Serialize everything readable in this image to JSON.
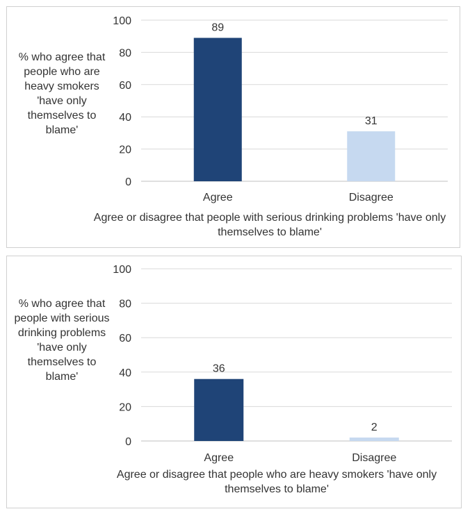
{
  "chart_data": [
    {
      "type": "bar",
      "categories": [
        "Agree",
        "Disagree"
      ],
      "values": [
        89,
        31
      ],
      "ylabel": "% who agree that people who are heavy smokers 'have only themselves to blame'",
      "xlabel": "Agree or disagree that people with serious drinking problems 'have only themselves to blame'",
      "ylim": [
        0,
        100
      ],
      "yticks": [
        0,
        20,
        40,
        60,
        80,
        100
      ],
      "grid": true,
      "colors": [
        "#1f4477",
        "#c6d9f0"
      ]
    },
    {
      "type": "bar",
      "categories": [
        "Agree",
        "Disagree"
      ],
      "values": [
        36,
        2
      ],
      "ylabel": "% who agree that people with serious drinking problems 'have only themselves to blame'",
      "xlabel": "Agree or disagree that people who are heavy smokers 'have only themselves to blame'",
      "ylim": [
        0,
        100
      ],
      "yticks": [
        0,
        20,
        40,
        60,
        80,
        100
      ],
      "grid": true,
      "colors": [
        "#1f4477",
        "#c6d9f0"
      ]
    }
  ]
}
